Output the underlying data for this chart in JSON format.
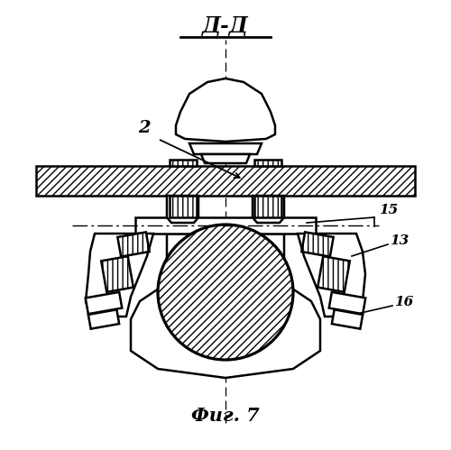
{
  "title": "Д-Д",
  "fig_label": "Фиг. 7",
  "bg_color": "#ffffff",
  "line_color": "#000000"
}
